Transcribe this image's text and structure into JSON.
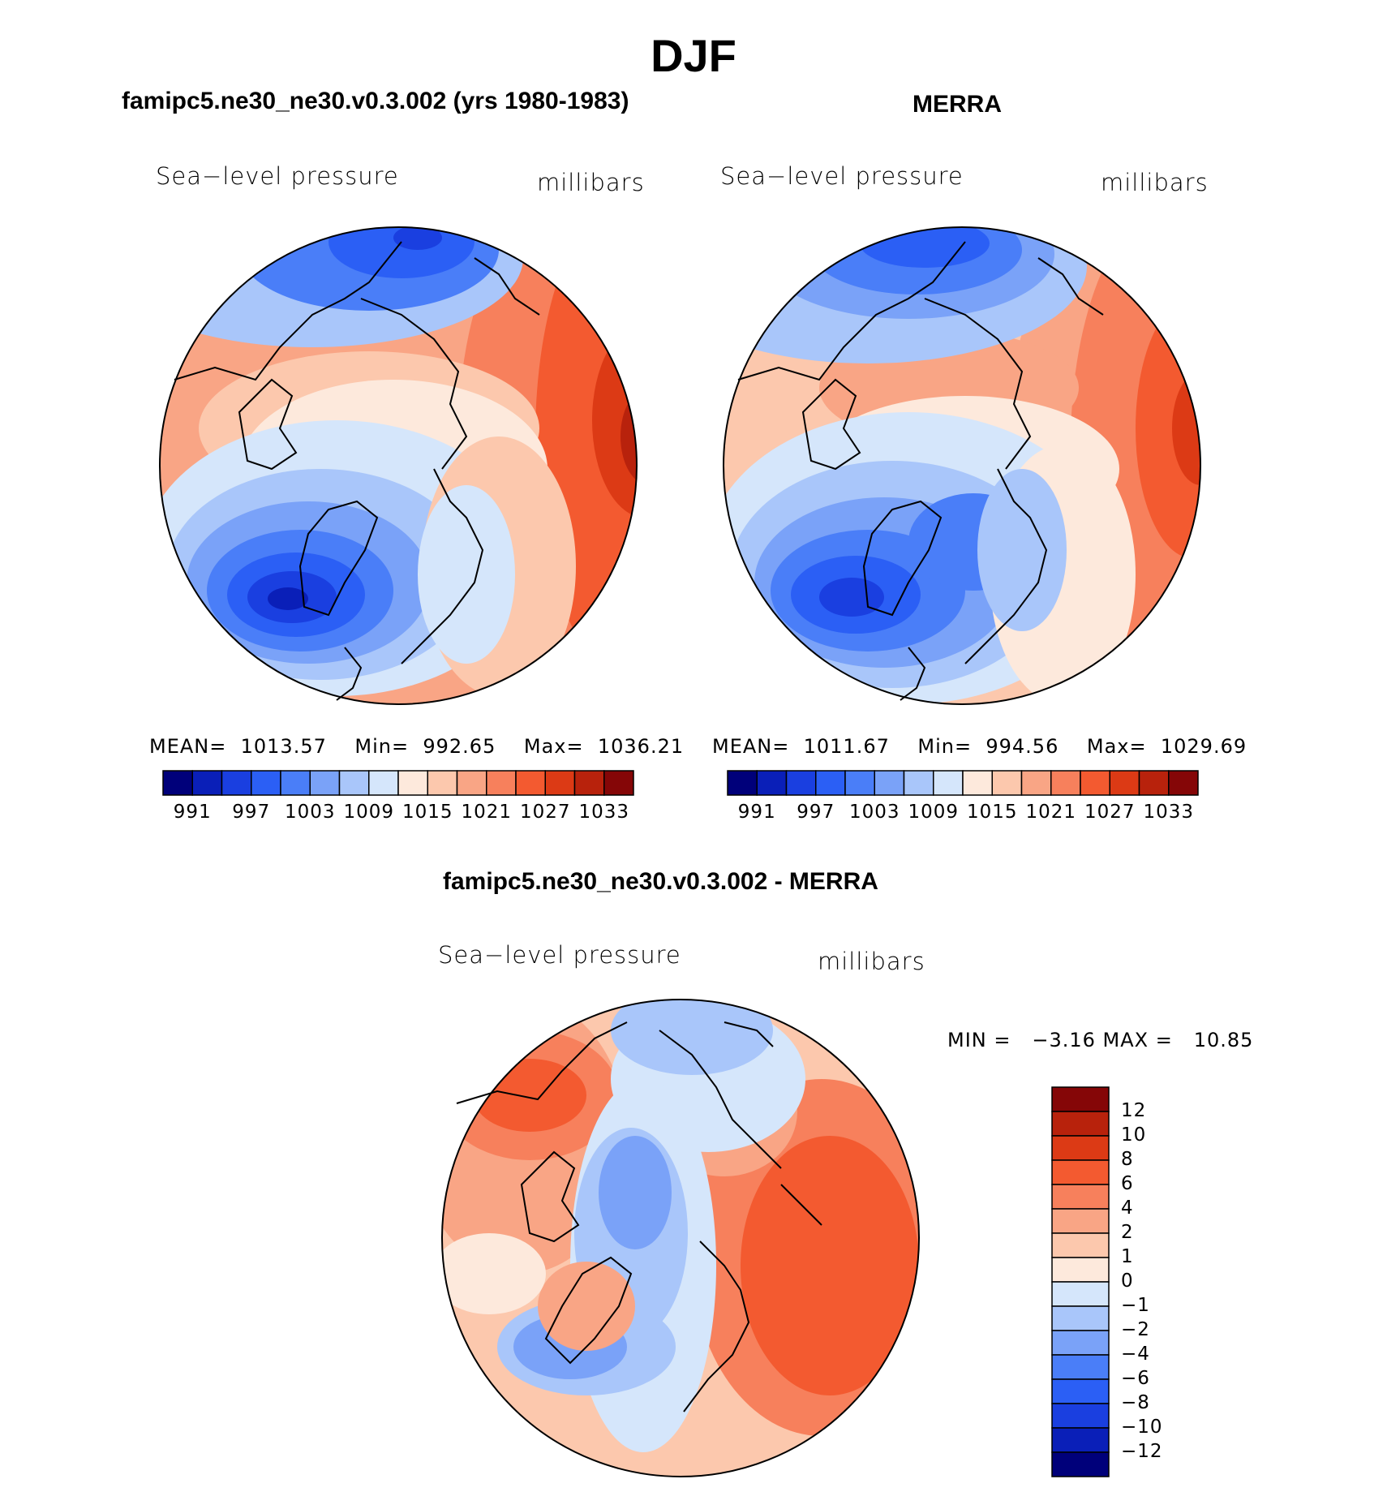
{
  "page_title": "DJF",
  "colors": {
    "abs_scale": [
      "#00007a",
      "#0a1fb8",
      "#1a3fe0",
      "#2b5ff5",
      "#4a7ef8",
      "#7aa2f8",
      "#a9c6fa",
      "#d5e6fb",
      "#fde9dc",
      "#fcc8ad",
      "#f9a585",
      "#f7805c",
      "#f35a30",
      "#dc3a15",
      "#b8220c",
      "#850607"
    ],
    "diff_scale": [
      "#00007a",
      "#0a1fb8",
      "#1a3fe0",
      "#2b5ff5",
      "#4a7ef8",
      "#7aa2f8",
      "#a9c6fa",
      "#d5e6fb",
      "#fde9dc",
      "#fcc8ad",
      "#f9a585",
      "#f7805c",
      "#f35a30",
      "#dc3a15",
      "#b8220c",
      "#850607"
    ]
  },
  "panels": {
    "model": {
      "title": "famipc5.ne30_ne30.v0.3.002 (yrs 1980-1983)",
      "variable": "Sea−level pressure",
      "units": "millibars",
      "stats": {
        "mean_label": "MEAN=",
        "mean": "1013.57",
        "min_label": "Min=",
        "min": "992.65",
        "max_label": "Max=",
        "max": "1036.21"
      },
      "colorbar_ticks": [
        "991",
        "997",
        "1003",
        "1009",
        "1015",
        "1021",
        "1027",
        "1033"
      ]
    },
    "obs": {
      "title": "MERRA",
      "variable": "Sea−level pressure",
      "units": "millibars",
      "stats": {
        "mean_label": "MEAN=",
        "mean": "1011.67",
        "min_label": "Min=",
        "min": "994.56",
        "max_label": "Max=",
        "max": "1029.69"
      },
      "colorbar_ticks": [
        "991",
        "997",
        "1003",
        "1009",
        "1015",
        "1021",
        "1027",
        "1033"
      ]
    },
    "diff": {
      "title": "famipc5.ne30_ne30.v0.3.002 - MERRA",
      "variable": "Sea−level pressure",
      "units": "millibars",
      "stats_text": "MIN =   −3.16 MAX =   10.85",
      "colorbar_ticks": [
        "12",
        "10",
        "8",
        "6",
        "4",
        "2",
        "1",
        "0",
        "−1",
        "−2",
        "−4",
        "−6",
        "−8",
        "−10",
        "−12"
      ]
    }
  }
}
